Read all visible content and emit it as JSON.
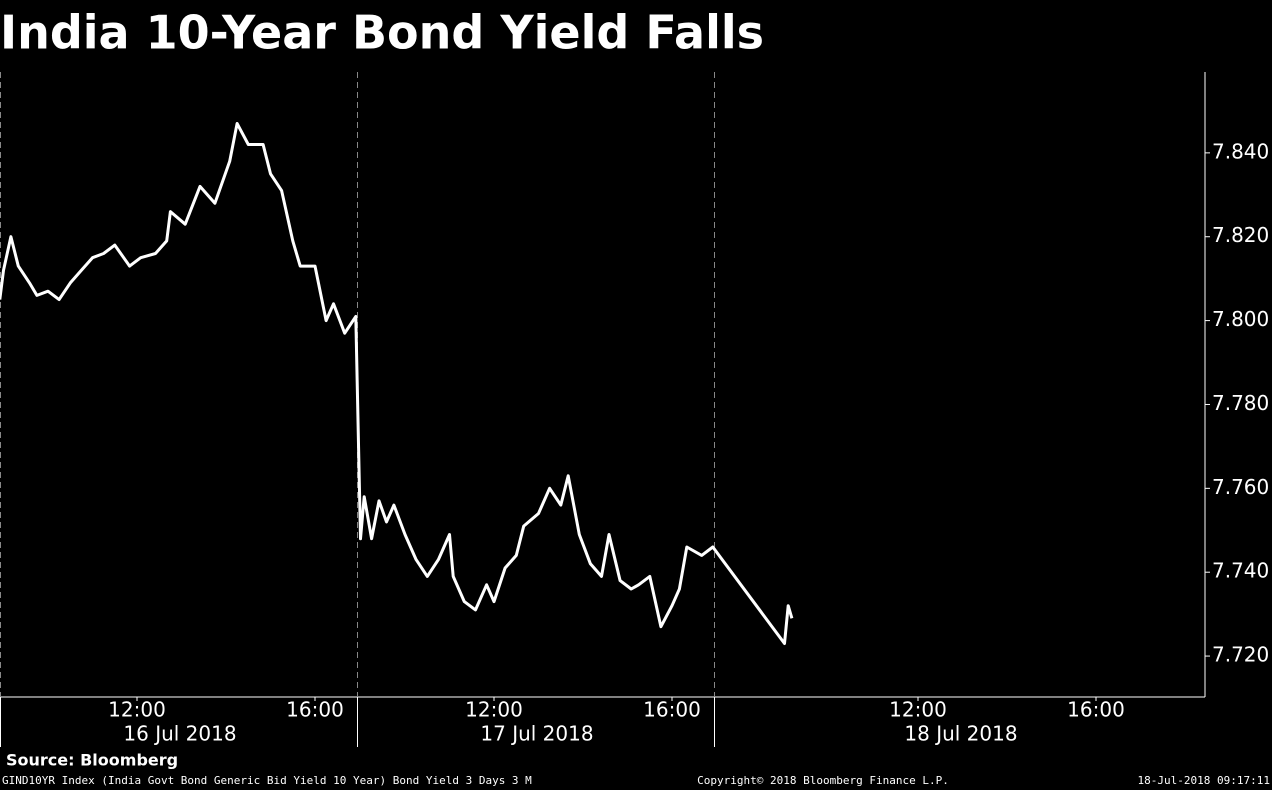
{
  "chart_data": {
    "type": "line",
    "title": "India 10-Year Bond Yield Falls",
    "source": "Source: Bloomberg",
    "footer_left": "GIND10YR Index (India Govt Bond Generic Bid Yield 10 Year) Bond Yield 3 Days 3 M",
    "footer_center": "Copyright© 2018 Bloomberg Finance L.P.",
    "footer_right": "18-Jul-2018 09:17:11",
    "color": "#ffffff",
    "x_dates": [
      {
        "value": "2018-07-16",
        "label": "16 Jul 2018"
      },
      {
        "value": "2018-07-17",
        "label": "17 Jul 2018"
      },
      {
        "value": "2018-07-18",
        "label": "18 Jul 2018"
      }
    ],
    "xticks": [
      {
        "value": "2018-07-16 12:00",
        "label": "12:00"
      },
      {
        "value": "2018-07-16 16:00",
        "label": "16:00"
      },
      {
        "value": "2018-07-17 12:00",
        "label": "12:00"
      },
      {
        "value": "2018-07-17 16:00",
        "label": "16:00"
      },
      {
        "value": "2018-07-18 12:00",
        "label": "12:00"
      },
      {
        "value": "2018-07-18 16:00",
        "label": "16:00"
      }
    ],
    "ylim": [
      7.71,
      7.86
    ],
    "yticks": [
      {
        "value": 7.72,
        "label": "7.720"
      },
      {
        "value": 7.74,
        "label": "7.740"
      },
      {
        "value": 7.76,
        "label": "7.760"
      },
      {
        "value": 7.78,
        "label": "7.780"
      },
      {
        "value": 7.8,
        "label": "7.800"
      },
      {
        "value": 7.82,
        "label": "7.820"
      },
      {
        "value": 7.84,
        "label": "7.840"
      }
    ],
    "x": [
      "2018-07-16 08:55",
      "2018-07-16 09:00",
      "2018-07-16 09:10",
      "2018-07-16 09:20",
      "2018-07-16 09:35",
      "2018-07-16 09:45",
      "2018-07-16 10:00",
      "2018-07-16 10:15",
      "2018-07-16 10:30",
      "2018-07-16 10:45",
      "2018-07-16 11:00",
      "2018-07-16 11:15",
      "2018-07-16 11:30",
      "2018-07-16 11:50",
      "2018-07-16 12:05",
      "2018-07-16 12:25",
      "2018-07-16 12:40",
      "2018-07-16 12:45",
      "2018-07-16 13:05",
      "2018-07-16 13:25",
      "2018-07-16 13:45",
      "2018-07-16 14:05",
      "2018-07-16 14:15",
      "2018-07-16 14:30",
      "2018-07-16 14:50",
      "2018-07-16 15:00",
      "2018-07-16 15:15",
      "2018-07-16 15:30",
      "2018-07-16 15:40",
      "2018-07-16 16:00",
      "2018-07-16 16:15",
      "2018-07-16 16:25",
      "2018-07-16 16:40",
      "2018-07-16 16:55",
      "2018-07-17 09:00",
      "2018-07-17 09:05",
      "2018-07-17 09:15",
      "2018-07-17 09:25",
      "2018-07-17 09:35",
      "2018-07-17 09:45",
      "2018-07-17 10:00",
      "2018-07-17 10:15",
      "2018-07-17 10:30",
      "2018-07-17 10:45",
      "2018-07-17 11:00",
      "2018-07-17 11:05",
      "2018-07-17 11:20",
      "2018-07-17 11:35",
      "2018-07-17 11:50",
      "2018-07-17 12:00",
      "2018-07-17 12:15",
      "2018-07-17 12:30",
      "2018-07-17 12:40",
      "2018-07-17 13:00",
      "2018-07-17 13:15",
      "2018-07-17 13:30",
      "2018-07-17 13:40",
      "2018-07-17 13:55",
      "2018-07-17 14:10",
      "2018-07-17 14:25",
      "2018-07-17 14:35",
      "2018-07-17 14:50",
      "2018-07-17 15:05",
      "2018-07-17 15:15",
      "2018-07-17 15:30",
      "2018-07-17 15:45",
      "2018-07-17 16:00",
      "2018-07-17 16:10",
      "2018-07-17 16:20",
      "2018-07-17 16:40",
      "2018-07-17 16:55",
      "2018-07-18 09:00",
      "2018-07-18 09:05",
      "2018-07-18 09:10"
    ],
    "values": [
      7.805,
      7.812,
      7.82,
      7.813,
      7.809,
      7.806,
      7.807,
      7.805,
      7.809,
      7.812,
      7.815,
      7.816,
      7.818,
      7.813,
      7.815,
      7.816,
      7.819,
      7.826,
      7.823,
      7.832,
      7.828,
      7.838,
      7.847,
      7.842,
      7.842,
      7.835,
      7.831,
      7.819,
      7.813,
      7.813,
      7.8,
      7.804,
      7.797,
      7.801,
      7.748,
      7.758,
      7.748,
      7.757,
      7.752,
      7.756,
      7.749,
      7.743,
      7.739,
      7.743,
      7.749,
      7.739,
      7.733,
      7.731,
      7.737,
      7.733,
      7.741,
      7.744,
      7.751,
      7.754,
      7.76,
      7.756,
      7.763,
      7.749,
      7.742,
      7.739,
      7.749,
      7.738,
      7.736,
      7.737,
      7.739,
      7.727,
      7.732,
      7.736,
      7.746,
      7.744,
      7.746,
      7.723,
      7.732,
      7.729
    ]
  }
}
